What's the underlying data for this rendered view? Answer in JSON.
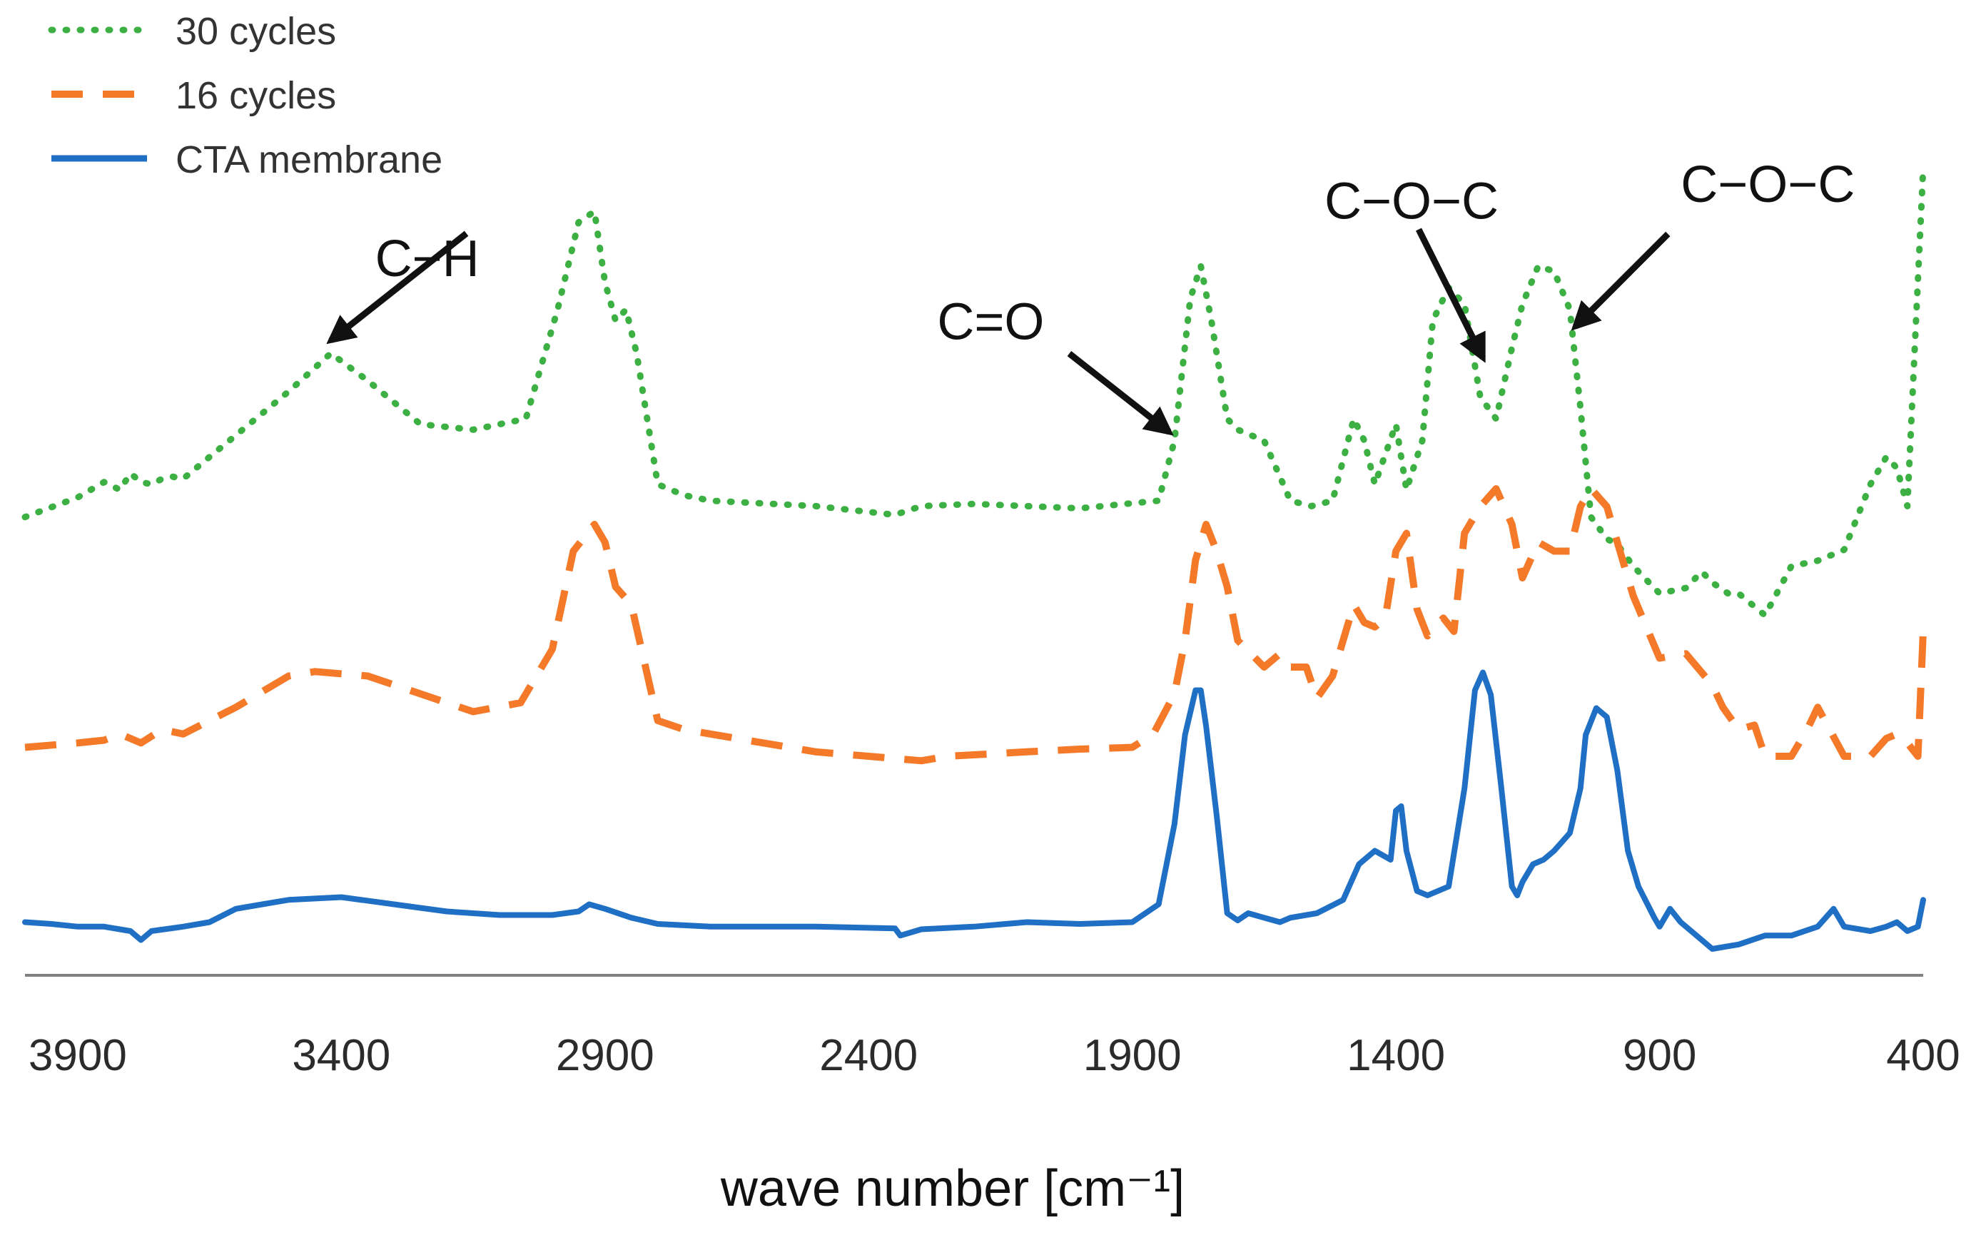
{
  "chart_data": {
    "type": "line",
    "title": "",
    "xlabel": "wave number [cm⁻¹]",
    "ylabel": "",
    "xlim": [
      4000,
      400
    ],
    "x_reversed": true,
    "y_axis_visible": false,
    "grid": false,
    "legend_position": "top-left",
    "x_ticks": [
      3900,
      3400,
      2900,
      2400,
      1900,
      1400,
      900,
      400
    ],
    "x_tick_labels": [
      "3900",
      "3400",
      "2900",
      "2400",
      "1900",
      "1400",
      "900",
      "400"
    ],
    "series": [
      {
        "name": "30 cycles",
        "color": "#3cb043",
        "style": "dotted",
        "x": [
          4000,
          3900,
          3850,
          3820,
          3800,
          3780,
          3760,
          3740,
          3720,
          3700,
          3650,
          3600,
          3500,
          3420,
          3350,
          3250,
          3150,
          3050,
          2990,
          2950,
          2920,
          2900,
          2880,
          2860,
          2840,
          2800,
          2750,
          2700,
          2500,
          2350,
          2300,
          2200,
          2000,
          1850,
          1820,
          1790,
          1770,
          1750,
          1720,
          1700,
          1650,
          1600,
          1560,
          1520,
          1480,
          1460,
          1440,
          1400,
          1380,
          1350,
          1330,
          1300,
          1270,
          1240,
          1210,
          1180,
          1160,
          1130,
          1100,
          1070,
          1050,
          1030,
          1000,
          980,
          950,
          900,
          850,
          820,
          800,
          770,
          750,
          700,
          650,
          600,
          550,
          500,
          470,
          450,
          430,
          400
        ],
        "values": [
          0.1,
          0.28,
          0.42,
          0.35,
          0.5,
          0.42,
          0.4,
          0.45,
          0.47,
          0.45,
          0.65,
          0.85,
          1.25,
          1.6,
          1.35,
          0.95,
          0.9,
          1.0,
          2.0,
          2.8,
          2.9,
          2.25,
          1.9,
          2.0,
          1.6,
          0.4,
          0.3,
          0.25,
          0.2,
          0.12,
          0.2,
          0.22,
          0.18,
          0.25,
          0.8,
          2.1,
          2.4,
          1.9,
          1.0,
          0.9,
          0.8,
          0.25,
          0.2,
          0.25,
          1.0,
          0.8,
          0.4,
          0.95,
          0.35,
          0.8,
          1.9,
          2.2,
          2.05,
          1.2,
          1.0,
          1.65,
          2.05,
          2.4,
          2.35,
          2.0,
          1.1,
          0.1,
          -0.1,
          -0.15,
          -0.35,
          -0.6,
          -0.55,
          -0.4,
          -0.5,
          -0.6,
          -0.6,
          -0.8,
          -0.35,
          -0.3,
          -0.2,
          0.4,
          0.65,
          0.55,
          0.2,
          3.3
        ]
      },
      {
        "name": "16 cycles",
        "color": "#f47a2a",
        "style": "dashed",
        "x": [
          4000,
          3900,
          3850,
          3820,
          3780,
          3740,
          3700,
          3650,
          3600,
          3500,
          3450,
          3350,
          3250,
          3150,
          3060,
          3000,
          2960,
          2920,
          2900,
          2880,
          2850,
          2800,
          2750,
          2700,
          2600,
          2500,
          2400,
          2300,
          2250,
          2100,
          2000,
          1900,
          1860,
          1820,
          1800,
          1780,
          1760,
          1740,
          1720,
          1700,
          1650,
          1620,
          1600,
          1570,
          1550,
          1520,
          1480,
          1460,
          1440,
          1420,
          1400,
          1380,
          1360,
          1340,
          1310,
          1290,
          1270,
          1240,
          1210,
          1180,
          1160,
          1130,
          1100,
          1070,
          1050,
          1030,
          1000,
          980,
          950,
          900,
          850,
          800,
          780,
          750,
          720,
          700,
          650,
          620,
          600,
          550,
          500,
          470,
          450,
          430,
          410,
          400
        ],
        "values": [
          0.3,
          0.35,
          0.38,
          0.45,
          0.35,
          0.5,
          0.45,
          0.6,
          0.75,
          1.1,
          1.15,
          1.1,
          0.9,
          0.7,
          0.8,
          1.4,
          2.5,
          2.8,
          2.6,
          2.1,
          1.9,
          0.6,
          0.5,
          0.45,
          0.35,
          0.25,
          0.2,
          0.15,
          0.2,
          0.25,
          0.28,
          0.3,
          0.45,
          0.9,
          1.5,
          2.4,
          2.8,
          2.5,
          2.1,
          1.5,
          1.2,
          1.35,
          1.2,
          1.2,
          0.85,
          1.1,
          1.9,
          1.7,
          1.65,
          1.75,
          2.5,
          2.7,
          1.85,
          1.55,
          1.75,
          1.6,
          2.7,
          3.0,
          3.2,
          2.8,
          2.2,
          2.6,
          2.5,
          2.5,
          3.0,
          3.2,
          3.0,
          2.6,
          2.0,
          1.3,
          1.35,
          1.0,
          0.75,
          0.5,
          0.55,
          0.2,
          0.2,
          0.5,
          0.75,
          0.2,
          0.2,
          0.4,
          0.45,
          0.35,
          0.2,
          1.6
        ]
      },
      {
        "name": "CTA membrane",
        "color": "#1f6fc5",
        "style": "solid",
        "x": [
          4000,
          3950,
          3900,
          3850,
          3800,
          3790,
          3780,
          3760,
          3700,
          3650,
          3600,
          3550,
          3500,
          3400,
          3300,
          3200,
          3100,
          3000,
          2950,
          2930,
          2900,
          2850,
          2800,
          2700,
          2500,
          2350,
          2340,
          2300,
          2200,
          2100,
          2000,
          1900,
          1850,
          1820,
          1800,
          1780,
          1770,
          1760,
          1740,
          1720,
          1700,
          1680,
          1650,
          1620,
          1600,
          1550,
          1500,
          1470,
          1440,
          1410,
          1400,
          1390,
          1380,
          1360,
          1340,
          1300,
          1270,
          1250,
          1235,
          1220,
          1200,
          1180,
          1170,
          1160,
          1140,
          1120,
          1100,
          1070,
          1050,
          1040,
          1020,
          1000,
          980,
          960,
          940,
          910,
          900,
          880,
          860,
          840,
          800,
          750,
          700,
          650,
          600,
          570,
          550,
          500,
          470,
          450,
          430,
          410,
          400
        ],
        "values": [
          0.1,
          0.08,
          0.05,
          0.05,
          0.0,
          -0.05,
          -0.1,
          0.0,
          0.05,
          0.1,
          0.25,
          0.3,
          0.35,
          0.38,
          0.3,
          0.22,
          0.18,
          0.18,
          0.22,
          0.3,
          0.25,
          0.15,
          0.08,
          0.05,
          0.05,
          0.03,
          -0.05,
          0.02,
          0.05,
          0.1,
          0.08,
          0.1,
          0.3,
          1.2,
          2.2,
          2.7,
          2.7,
          2.3,
          1.3,
          0.2,
          0.12,
          0.2,
          0.15,
          0.1,
          0.15,
          0.2,
          0.35,
          0.75,
          0.9,
          0.8,
          1.35,
          1.4,
          0.9,
          0.45,
          0.4,
          0.5,
          1.6,
          2.7,
          2.9,
          2.65,
          1.6,
          0.5,
          0.4,
          0.55,
          0.75,
          0.8,
          0.9,
          1.1,
          1.6,
          2.2,
          2.5,
          2.4,
          1.8,
          0.9,
          0.5,
          0.15,
          0.05,
          0.25,
          0.1,
          0.0,
          -0.2,
          -0.15,
          -0.05,
          -0.05,
          0.05,
          0.25,
          0.05,
          0.0,
          0.05,
          0.1,
          0.0,
          0.05,
          0.35
        ]
      }
    ],
    "annotations": [
      {
        "text": "C−H",
        "target_x": 3420
      },
      {
        "text": "C=O",
        "target_x": 1830
      },
      {
        "text": "C−O−C",
        "target_x": 1235
      },
      {
        "text": "C−O−C",
        "target_x": 1060
      }
    ]
  }
}
